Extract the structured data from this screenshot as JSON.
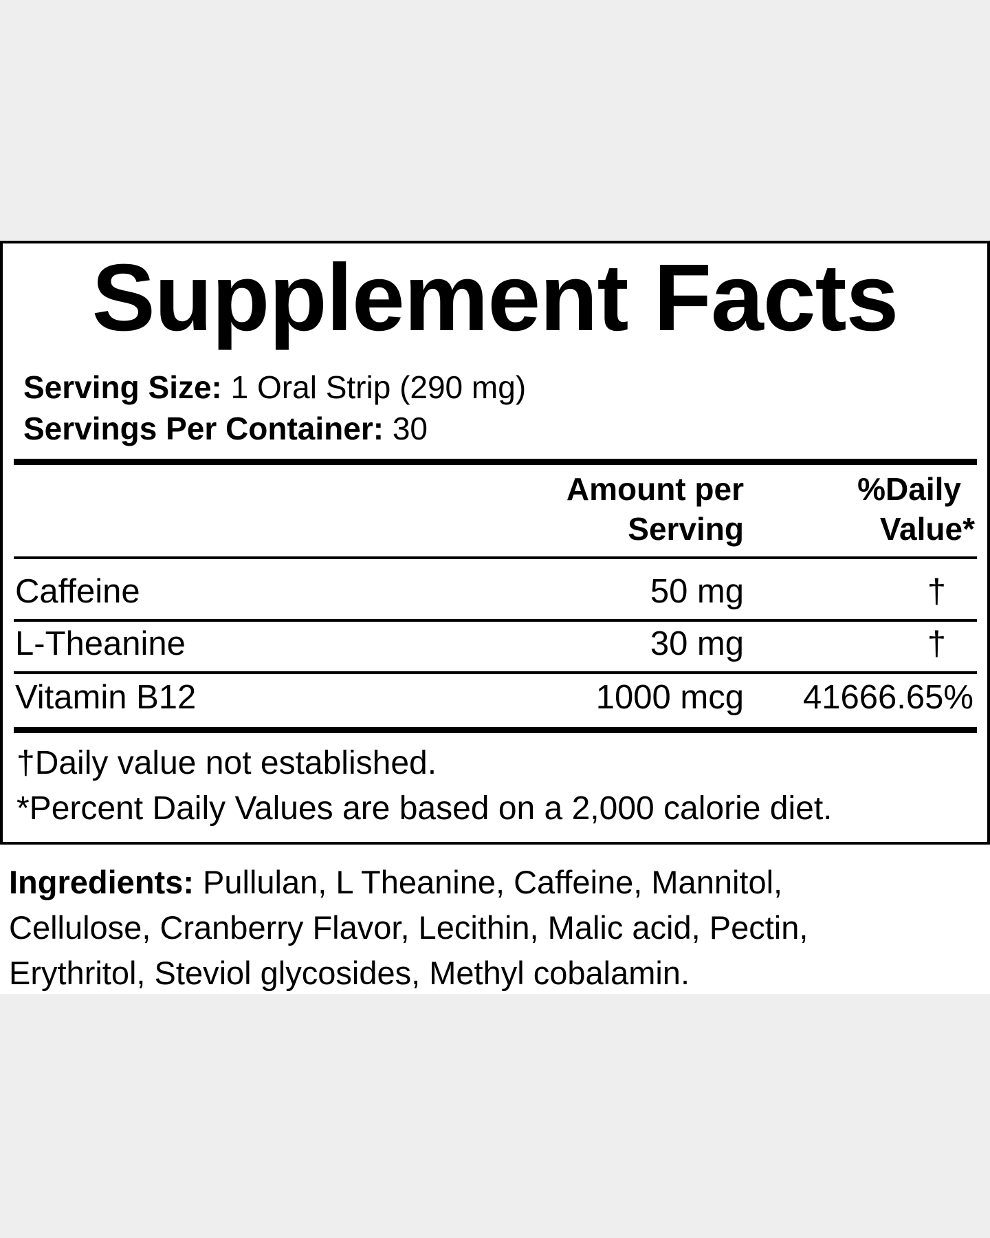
{
  "title": "Supplement Facts",
  "serving_size": {
    "label": "Serving Size:",
    "value": "1 Oral Strip (290 mg)"
  },
  "servings_per_container": {
    "label": "Servings Per Container:",
    "value": "30"
  },
  "columns": {
    "amount": [
      "Amount per",
      "Serving"
    ],
    "daily_value": [
      "%Daily",
      "Value*"
    ]
  },
  "rows": [
    {
      "name": "Caffeine",
      "amount": "50 mg",
      "dv": "†"
    },
    {
      "name": "L-Theanine",
      "amount": "30 mg",
      "dv": "†"
    },
    {
      "name": "Vitamin B12",
      "amount": "1000 mcg",
      "dv": "41666.65%"
    }
  ],
  "footnotes": [
    "†Daily value not established.",
    "*Percent Daily Values are based on a 2,000 calorie diet."
  ],
  "ingredients": {
    "label": "Ingredients:",
    "lines": [
      "Pullulan, L Theanine, Caffeine, Mannitol,",
      "Cellulose, Cranberry Flavor, Lecithin, Malic acid, Pectin,",
      "Erythritol, Steviol glycosides, Methyl cobalamin."
    ]
  }
}
